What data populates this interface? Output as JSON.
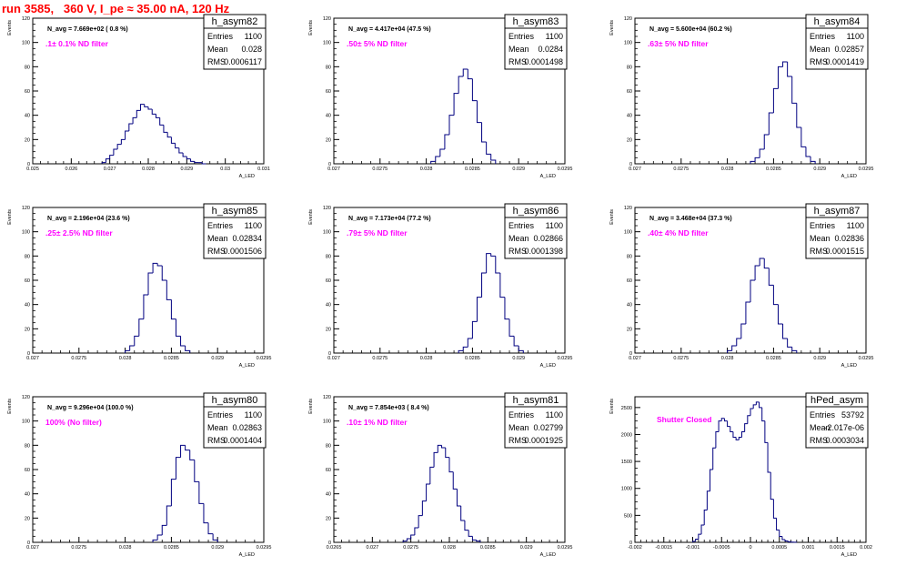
{
  "header": {
    "title": "run 3585,   360 V, I_pe ≈ 35.00 nA, 120 Hz"
  },
  "colors": {
    "title": "#ff0000",
    "filter_label": "#ff00ff",
    "histogram": "#000080",
    "frame": "#000000"
  },
  "chart_data": [
    {
      "type": "bar",
      "name": "h_asym82",
      "navg": "N_avg = 7.669e+02 ( 0.8 %)",
      "filter": ".1± 0.1% ND filter",
      "stats": {
        "entries_label": "Entries",
        "entries": "1100",
        "mean_label": "Mean",
        "mean": "0.028",
        "rms_label": "RMS",
        "rms": "0.0006117"
      },
      "ylabel": "Events",
      "xlabel": "A_LED",
      "xlim": [
        0.025,
        0.031
      ],
      "ylim": [
        0,
        120
      ],
      "xticks": [
        "0.025",
        "0.026",
        "0.027",
        "0.028",
        "0.029",
        "0.03",
        "0.031"
      ],
      "xtick_values": [
        0.025,
        0.026,
        0.027,
        0.028,
        0.029,
        0.03,
        0.031
      ],
      "yticks": [
        "0",
        "20",
        "40",
        "60",
        "80",
        "100",
        "120"
      ],
      "ytick_values": [
        0,
        20,
        40,
        60,
        80,
        100,
        120
      ],
      "x": [
        0.0268,
        0.0269,
        0.027,
        0.0271,
        0.0272,
        0.0273,
        0.0274,
        0.0275,
        0.0276,
        0.0277,
        0.0278,
        0.0279,
        0.028,
        0.0281,
        0.0282,
        0.0283,
        0.0284,
        0.0285,
        0.0286,
        0.0287,
        0.0288,
        0.0289,
        0.029,
        0.0291,
        0.0292,
        0.0293,
        0.0294
      ],
      "values": [
        1,
        4,
        7,
        12,
        16,
        20,
        27,
        33,
        38,
        44,
        49,
        47,
        45,
        41,
        38,
        32,
        26,
        22,
        17,
        13,
        9,
        6,
        4,
        2,
        1,
        1,
        0
      ]
    },
    {
      "type": "bar",
      "name": "h_asym83",
      "navg": "N_avg = 4.417e+04 (47.5 %)",
      "filter": ".50± 5% ND filter",
      "stats": {
        "entries_label": "Entries",
        "entries": "1100",
        "mean_label": "Mean",
        "mean": "0.0284",
        "rms_label": "RMS",
        "rms": "0.0001498"
      },
      "ylabel": "Events",
      "xlabel": "A_LED",
      "xlim": [
        0.027,
        0.0295
      ],
      "ylim": [
        0,
        120
      ],
      "xticks": [
        "0.027",
        "0.0275",
        "0.028",
        "0.0285",
        "0.029",
        "0.0295"
      ],
      "xtick_values": [
        0.027,
        0.0275,
        0.028,
        0.0285,
        0.029,
        0.0295
      ],
      "yticks": [
        "0",
        "20",
        "40",
        "60",
        "80",
        "100",
        "120"
      ],
      "ytick_values": [
        0,
        20,
        40,
        60,
        80,
        100,
        120
      ],
      "x": [
        0.02805,
        0.0281,
        0.02815,
        0.0282,
        0.02825,
        0.0283,
        0.02835,
        0.0284,
        0.02845,
        0.0285,
        0.02855,
        0.0286,
        0.02865,
        0.0287
      ],
      "values": [
        2,
        6,
        12,
        24,
        40,
        58,
        72,
        78,
        70,
        52,
        34,
        18,
        8,
        3
      ]
    },
    {
      "type": "bar",
      "name": "h_asym84",
      "navg": "N_avg = 5.600e+04 (60.2 %)",
      "filter": ".63± 5% ND filter",
      "stats": {
        "entries_label": "Entries",
        "entries": "1100",
        "mean_label": "Mean",
        "mean": "0.02857",
        "rms_label": "RMS",
        "rms": "0.0001419"
      },
      "ylabel": "Events",
      "xlabel": "A_LED",
      "xlim": [
        0.027,
        0.0295
      ],
      "ylim": [
        0,
        120
      ],
      "xticks": [
        "0.027",
        "0.0275",
        "0.028",
        "0.0285",
        "0.029",
        "0.0295"
      ],
      "xtick_values": [
        0.027,
        0.0275,
        0.028,
        0.0285,
        0.029,
        0.0295
      ],
      "yticks": [
        "0",
        "20",
        "40",
        "60",
        "80",
        "100",
        "120"
      ],
      "ytick_values": [
        0,
        20,
        40,
        60,
        80,
        100,
        120
      ],
      "x": [
        0.02825,
        0.0283,
        0.02835,
        0.0284,
        0.02845,
        0.0285,
        0.02855,
        0.0286,
        0.02865,
        0.0287,
        0.02875,
        0.0288,
        0.02885,
        0.0289
      ],
      "values": [
        2,
        5,
        12,
        24,
        42,
        62,
        80,
        84,
        72,
        50,
        30,
        14,
        6,
        2
      ]
    },
    {
      "type": "bar",
      "name": "h_asym85",
      "navg": "N_avg = 2.196e+04 (23.6 %)",
      "filter": ".25± 2.5% ND filter",
      "stats": {
        "entries_label": "Entries",
        "entries": "1100",
        "mean_label": "Mean",
        "mean": "0.02834",
        "rms_label": "RMS",
        "rms": "0.0001506"
      },
      "ylabel": "Events",
      "xlabel": "A_LED",
      "xlim": [
        0.027,
        0.0295
      ],
      "ylim": [
        0,
        120
      ],
      "xticks": [
        "0.027",
        "0.0275",
        "0.028",
        "0.0285",
        "0.029",
        "0.0295"
      ],
      "xtick_values": [
        0.027,
        0.0275,
        0.028,
        0.0285,
        0.029,
        0.0295
      ],
      "yticks": [
        "0",
        "20",
        "40",
        "60",
        "80",
        "100",
        "120"
      ],
      "ytick_values": [
        0,
        20,
        40,
        60,
        80,
        100,
        120
      ],
      "x": [
        0.028,
        0.02805,
        0.0281,
        0.02815,
        0.0282,
        0.02825,
        0.0283,
        0.02835,
        0.0284,
        0.02845,
        0.0285,
        0.02855,
        0.0286,
        0.02865
      ],
      "values": [
        2,
        6,
        14,
        28,
        48,
        66,
        74,
        72,
        60,
        44,
        28,
        14,
        6,
        2
      ]
    },
    {
      "type": "bar",
      "name": "h_asym86",
      "navg": "N_avg = 7.173e+04 (77.2 %)",
      "filter": ".79± 5% ND filter",
      "stats": {
        "entries_label": "Entries",
        "entries": "1100",
        "mean_label": "Mean",
        "mean": "0.02866",
        "rms_label": "RMS",
        "rms": "0.0001398"
      },
      "ylabel": "Events",
      "xlabel": "A_LED",
      "xlim": [
        0.027,
        0.0295
      ],
      "ylim": [
        0,
        120
      ],
      "xticks": [
        "0.027",
        "0.0275",
        "0.028",
        "0.0285",
        "0.029",
        "0.0295"
      ],
      "xtick_values": [
        0.027,
        0.0275,
        0.028,
        0.0285,
        0.029,
        0.0295
      ],
      "yticks": [
        "0",
        "20",
        "40",
        "60",
        "80",
        "100",
        "120"
      ],
      "ytick_values": [
        0,
        20,
        40,
        60,
        80,
        100,
        120
      ],
      "x": [
        0.02835,
        0.0284,
        0.02845,
        0.0285,
        0.02855,
        0.0286,
        0.02865,
        0.0287,
        0.02875,
        0.0288,
        0.02885,
        0.0289,
        0.02895,
        0.029
      ],
      "values": [
        2,
        5,
        12,
        26,
        46,
        66,
        82,
        80,
        66,
        46,
        28,
        14,
        6,
        2
      ]
    },
    {
      "type": "bar",
      "name": "h_asym87",
      "navg": "N_avg = 3.468e+04 (37.3 %)",
      "filter": ".40± 4% ND filter",
      "stats": {
        "entries_label": "Entries",
        "entries": "1100",
        "mean_label": "Mean",
        "mean": "0.02836",
        "rms_label": "RMS",
        "rms": "0.0001515"
      },
      "ylabel": "Events",
      "xlabel": "A_LED",
      "xlim": [
        0.027,
        0.0295
      ],
      "ylim": [
        0,
        120
      ],
      "xticks": [
        "0.027",
        "0.0275",
        "0.028",
        "0.0285",
        "0.029",
        "0.0295"
      ],
      "xtick_values": [
        0.027,
        0.0275,
        0.028,
        0.0285,
        0.029,
        0.0295
      ],
      "yticks": [
        "0",
        "20",
        "40",
        "60",
        "80",
        "100",
        "120"
      ],
      "ytick_values": [
        0,
        20,
        40,
        60,
        80,
        100,
        120
      ],
      "x": [
        0.028,
        0.02805,
        0.0281,
        0.02815,
        0.0282,
        0.02825,
        0.0283,
        0.02835,
        0.0284,
        0.02845,
        0.0285,
        0.02855,
        0.0286,
        0.02865,
        0.0287
      ],
      "values": [
        2,
        6,
        12,
        24,
        42,
        60,
        72,
        78,
        70,
        56,
        40,
        24,
        12,
        5,
        2
      ]
    },
    {
      "type": "bar",
      "name": "h_asym80",
      "navg": "N_avg = 9.296e+04 (100.0 %)",
      "filter": "100% (No filter)",
      "stats": {
        "entries_label": "Entries",
        "entries": "1100",
        "mean_label": "Mean",
        "mean": "0.02863",
        "rms_label": "RMS",
        "rms": "0.0001404"
      },
      "ylabel": "Events",
      "xlabel": "A_LED",
      "xlim": [
        0.027,
        0.0295
      ],
      "ylim": [
        0,
        120
      ],
      "xticks": [
        "0.027",
        "0.0275",
        "0.028",
        "0.0285",
        "0.029",
        "0.0295"
      ],
      "xtick_values": [
        0.027,
        0.0275,
        0.028,
        0.0285,
        0.029,
        0.0295
      ],
      "yticks": [
        "0",
        "20",
        "40",
        "60",
        "80",
        "100",
        "120"
      ],
      "ytick_values": [
        0,
        20,
        40,
        60,
        80,
        100,
        120
      ],
      "x": [
        0.0283,
        0.02835,
        0.0284,
        0.02845,
        0.0285,
        0.02855,
        0.0286,
        0.02865,
        0.0287,
        0.02875,
        0.0288,
        0.02885,
        0.0289,
        0.02895
      ],
      "values": [
        2,
        6,
        14,
        30,
        52,
        70,
        80,
        76,
        68,
        50,
        32,
        16,
        7,
        2
      ]
    },
    {
      "type": "bar",
      "name": "h_asym81",
      "navg": "N_avg = 7.854e+03 ( 8.4 %)",
      "filter": ".10± 1% ND filter",
      "stats": {
        "entries_label": "Entries",
        "entries": "1100",
        "mean_label": "Mean",
        "mean": "0.02799",
        "rms_label": "RMS",
        "rms": "0.0001925"
      },
      "ylabel": "Events",
      "xlabel": "A_LED",
      "xlim": [
        0.0265,
        0.0295
      ],
      "ylim": [
        0,
        120
      ],
      "xticks": [
        "0.0265",
        "0.027",
        "0.0275",
        "0.028",
        "0.0285",
        "0.029",
        "0.0295"
      ],
      "xtick_values": [
        0.0265,
        0.027,
        0.0275,
        0.028,
        0.0285,
        0.029,
        0.0295
      ],
      "yticks": [
        "0",
        "20",
        "40",
        "60",
        "80",
        "100",
        "120"
      ],
      "ytick_values": [
        0,
        20,
        40,
        60,
        80,
        100,
        120
      ],
      "x": [
        0.0274,
        0.02745,
        0.0275,
        0.02755,
        0.0276,
        0.02765,
        0.0277,
        0.02775,
        0.0278,
        0.02785,
        0.0279,
        0.02795,
        0.028,
        0.02805,
        0.0281,
        0.02815,
        0.0282,
        0.02825,
        0.0283,
        0.02835
      ],
      "values": [
        1,
        3,
        6,
        12,
        22,
        34,
        48,
        62,
        74,
        80,
        78,
        70,
        58,
        44,
        30,
        18,
        10,
        5,
        2,
        1
      ]
    },
    {
      "type": "bar",
      "name": "hPed_asym",
      "navg": "",
      "filter": "Shutter Closed",
      "stats": {
        "entries_label": "Entries",
        "entries": "53792",
        "mean_label": "Mean",
        "mean": "-2.017e-06",
        "rms_label": "RMS",
        "rms": "0.0003034"
      },
      "ylabel": "Events",
      "xlabel": "A_LED",
      "xlim": [
        -0.002,
        0.002
      ],
      "ylim": [
        0,
        2700
      ],
      "xticks": [
        "-0.002",
        "-0.0015",
        "-0.001",
        "-0.0005",
        "0",
        "0.0005",
        "0.001",
        "0.0015",
        "0.002"
      ],
      "xtick_values": [
        -0.002,
        -0.0015,
        -0.001,
        -0.0005,
        0,
        0.0005,
        0.001,
        0.0015,
        0.002
      ],
      "yticks": [
        "0",
        "500",
        "1000",
        "1500",
        "2000",
        "2500"
      ],
      "ytick_values": [
        0,
        500,
        1000,
        1500,
        2000,
        2500
      ],
      "x": [
        -0.001,
        -0.00095,
        -0.0009,
        -0.00085,
        -0.0008,
        -0.00075,
        -0.0007,
        -0.00065,
        -0.0006,
        -0.00055,
        -0.0005,
        -0.00045,
        -0.0004,
        -0.00035,
        -0.0003,
        -0.00025,
        -0.0002,
        -0.00015,
        -0.0001,
        -5e-05,
        0.0,
        5e-05,
        0.0001,
        0.00015,
        0.0002,
        0.00025,
        0.0003,
        0.00035,
        0.0004,
        0.00045,
        0.0005,
        0.00055,
        0.0006,
        0.00065,
        0.0007,
        0.00075
      ],
      "values": [
        20,
        60,
        150,
        320,
        600,
        950,
        1350,
        1750,
        2050,
        2250,
        2300,
        2250,
        2150,
        2050,
        1950,
        1900,
        1950,
        2050,
        2200,
        2350,
        2480,
        2550,
        2600,
        2500,
        2250,
        1850,
        1300,
        800,
        450,
        230,
        110,
        50,
        25,
        10,
        5,
        2
      ]
    }
  ]
}
